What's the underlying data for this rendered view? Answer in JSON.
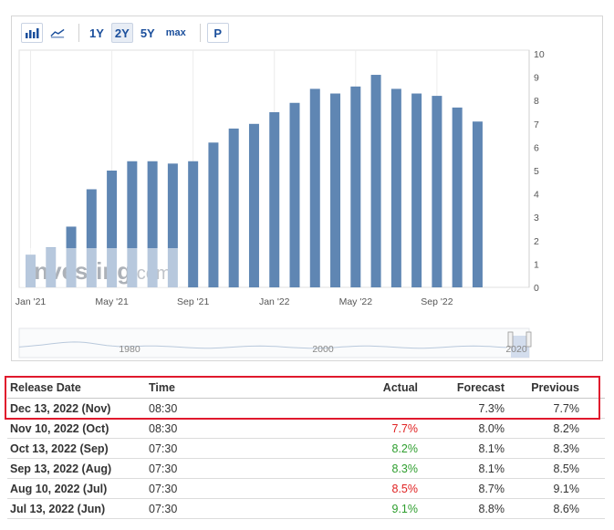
{
  "toolbar": {
    "bar_icon": "bar-chart-icon",
    "line_icon": "line-chart-icon",
    "ranges": [
      "1Y",
      "2Y",
      "5Y",
      "max"
    ],
    "active_range": "2Y",
    "p_label": "P"
  },
  "watermark": {
    "brand": "Investing",
    "suffix": ".com"
  },
  "chart_data": {
    "type": "bar",
    "categories": [
      "Jan '21",
      "Feb '21",
      "Mar '21",
      "Apr '21",
      "May '21",
      "Jun '21",
      "Jul '21",
      "Aug '21",
      "Sep '21",
      "Oct '21",
      "Nov '21",
      "Dec '21",
      "Jan '22",
      "Feb '22",
      "Mar '22",
      "Apr '22",
      "May '22",
      "Jun '22",
      "Jul '22",
      "Aug '22",
      "Sep '22",
      "Oct '22",
      "Nov '22"
    ],
    "values": [
      1.4,
      1.7,
      2.6,
      4.2,
      5.0,
      5.4,
      5.4,
      5.3,
      5.4,
      6.2,
      6.8,
      7.0,
      7.5,
      7.9,
      8.5,
      8.3,
      8.6,
      9.1,
      8.5,
      8.3,
      8.2,
      7.7,
      7.1
    ],
    "x_tick_labels": [
      "Jan '21",
      "May '21",
      "Sep '21",
      "Jan '22",
      "May '22",
      "Sep '22"
    ],
    "y_ticks": [
      0,
      1,
      2,
      3,
      4,
      5,
      6,
      7,
      8,
      9,
      10
    ],
    "ylim": [
      0,
      10
    ],
    "grid": "vertical",
    "bar_color": "#5f86b3"
  },
  "navigator": {
    "labels": [
      "1980",
      "2000",
      "2020"
    ]
  },
  "table": {
    "headers": {
      "date": "Release Date",
      "time": "Time",
      "actual": "Actual",
      "forecast": "Forecast",
      "previous": "Previous"
    },
    "rows": [
      {
        "date": "Dec 13, 2022 (Nov)",
        "time": "08:30",
        "actual": "",
        "actual_color": "",
        "forecast": "7.3%",
        "previous": "7.7%"
      },
      {
        "date": "Nov 10, 2022 (Oct)",
        "time": "08:30",
        "actual": "7.7%",
        "actual_color": "red",
        "forecast": "8.0%",
        "previous": "8.2%"
      },
      {
        "date": "Oct 13, 2022 (Sep)",
        "time": "07:30",
        "actual": "8.2%",
        "actual_color": "green",
        "forecast": "8.1%",
        "previous": "8.3%"
      },
      {
        "date": "Sep 13, 2022 (Aug)",
        "time": "07:30",
        "actual": "8.3%",
        "actual_color": "green",
        "forecast": "8.1%",
        "previous": "8.5%"
      },
      {
        "date": "Aug 10, 2022 (Jul)",
        "time": "07:30",
        "actual": "8.5%",
        "actual_color": "red",
        "forecast": "8.7%",
        "previous": "9.1%"
      },
      {
        "date": "Jul 13, 2022 (Jun)",
        "time": "07:30",
        "actual": "9.1%",
        "actual_color": "green",
        "forecast": "8.8%",
        "previous": "8.6%"
      }
    ]
  },
  "colors": {
    "highlight": "#e0192d",
    "green": "#2e9e2e",
    "red": "#e02121",
    "link": "#1b4f9c"
  }
}
